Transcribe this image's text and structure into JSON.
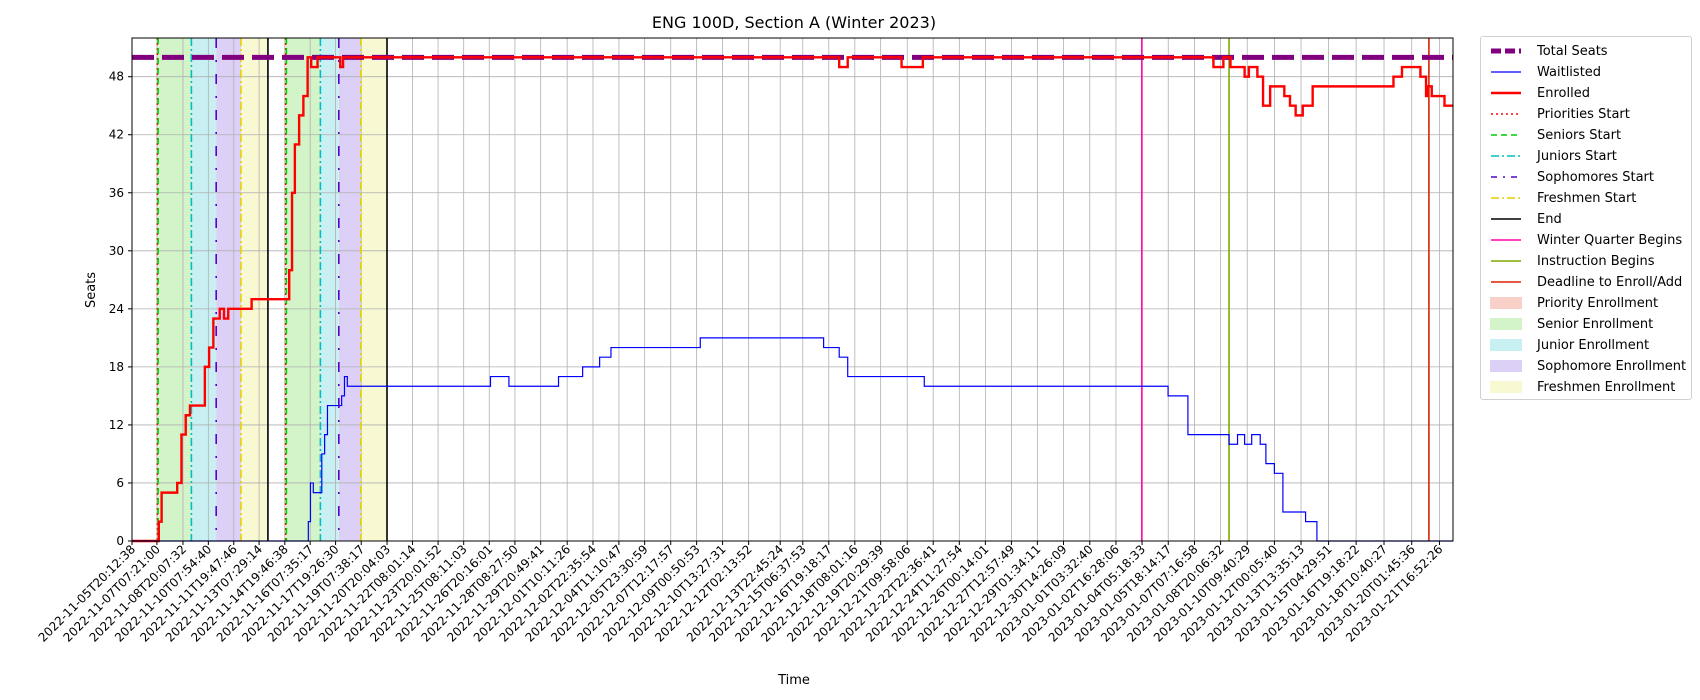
{
  "chart_data": {
    "type": "line",
    "title": "ENG 100D, Section A (Winter 2023)",
    "xlabel": "Time",
    "ylabel": "Seats",
    "ylim": [
      0,
      52
    ],
    "yticks": [
      0,
      6,
      12,
      18,
      24,
      30,
      36,
      42,
      48
    ],
    "grid": true,
    "legend_placement": "outside-right",
    "x_tick_labels": [
      "2022-11-05T20:12:38",
      "2022-11-07T07:21:00",
      "2022-11-08T20:07:32",
      "2022-11-10T07:54:40",
      "2022-11-11T19:47:46",
      "2022-11-13T07:29:14",
      "2022-11-14T19:46:38",
      "2022-11-16T07:35:17",
      "2022-11-17T19:26:30",
      "2022-11-19T07:38:17",
      "2022-11-20T20:04:03",
      "2022-11-22T08:01:14",
      "2022-11-23T20:01:52",
      "2022-11-25T08:11:03",
      "2022-11-26T20:16:01",
      "2022-11-28T08:27:50",
      "2022-11-29T20:49:41",
      "2022-12-01T10:11:26",
      "2022-12-02T22:35:54",
      "2022-12-04T11:10:47",
      "2022-12-05T23:30:59",
      "2022-12-07T12:17:57",
      "2022-12-09T00:50:53",
      "2022-12-10T13:27:31",
      "2022-12-12T02:13:52",
      "2022-12-13T22:45:24",
      "2022-12-15T06:37:53",
      "2022-12-16T19:18:17",
      "2022-12-18T08:01:16",
      "2022-12-19T20:29:39",
      "2022-12-21T09:58:06",
      "2022-12-22T22:36:41",
      "2022-12-24T11:27:54",
      "2022-12-26T00:14:01",
      "2022-12-27T12:57:49",
      "2022-12-29T01:34:11",
      "2022-12-30T14:26:09",
      "2023-01-01T03:32:40",
      "2023-01-02T16:28:06",
      "2023-01-04T05:18:33",
      "2023-01-05T18:14:17",
      "2023-01-07T07:16:58",
      "2023-01-08T20:06:32",
      "2023-01-10T09:40:29",
      "2023-01-12T00:05:40",
      "2023-01-13T13:35:13",
      "2023-01-15T04:29:51",
      "2023-01-16T19:18:22",
      "2023-01-18T10:40:27",
      "2023-01-20T01:45:36",
      "2023-01-21T16:52:26"
    ],
    "x_range": [
      "2022-11-05T20:12:38",
      "2023-01-22T12:00:00"
    ],
    "series": [
      {
        "name": "Total Seats",
        "color": "#800080",
        "style": "dashed-thick",
        "points": [
          [
            "2022-11-05T20:12:38",
            50
          ],
          [
            "2023-01-22T12:00:00",
            50
          ]
        ]
      },
      {
        "name": "Enrolled",
        "color": "#ff0000",
        "style": "solid-thick",
        "points": [
          [
            "2022-11-05T20:12:38",
            0
          ],
          [
            "2022-11-07T07:21:00",
            0
          ],
          [
            "2022-11-07T10:00:00",
            2
          ],
          [
            "2022-11-07T14:00:00",
            5
          ],
          [
            "2022-11-08T00:00:00",
            5
          ],
          [
            "2022-11-08T12:00:00",
            6
          ],
          [
            "2022-11-08T18:00:00",
            11
          ],
          [
            "2022-11-09T00:00:00",
            13
          ],
          [
            "2022-11-09T06:00:00",
            14
          ],
          [
            "2022-11-09T20:00:00",
            14
          ],
          [
            "2022-11-10T03:00:00",
            18
          ],
          [
            "2022-11-10T09:00:00",
            20
          ],
          [
            "2022-11-10T15:00:00",
            23
          ],
          [
            "2022-11-11T00:00:00",
            24
          ],
          [
            "2022-11-11T06:00:00",
            23
          ],
          [
            "2022-11-11T12:00:00",
            24
          ],
          [
            "2022-11-12T12:00:00",
            24
          ],
          [
            "2022-11-12T21:00:00",
            25
          ],
          [
            "2022-11-14T19:46:38",
            25
          ],
          [
            "2022-11-15T02:00:00",
            28
          ],
          [
            "2022-11-15T06:00:00",
            36
          ],
          [
            "2022-11-15T10:00:00",
            41
          ],
          [
            "2022-11-15T16:00:00",
            44
          ],
          [
            "2022-11-15T22:00:00",
            46
          ],
          [
            "2022-11-16T04:00:00",
            50
          ],
          [
            "2022-11-16T09:00:00",
            49
          ],
          [
            "2022-11-16T18:00:00",
            50
          ],
          [
            "2022-11-17T19:26:30",
            50
          ],
          [
            "2022-11-18T02:00:00",
            49
          ],
          [
            "2022-11-18T06:00:00",
            50
          ],
          [
            "2022-12-17T08:00:00",
            50
          ],
          [
            "2022-12-17T10:00:00",
            49
          ],
          [
            "2022-12-17T22:00:00",
            50
          ],
          [
            "2022-12-21T00:00:00",
            50
          ],
          [
            "2022-12-21T02:00:00",
            49
          ],
          [
            "2022-12-22T08:00:00",
            50
          ],
          [
            "2023-01-08T06:00:00",
            50
          ],
          [
            "2023-01-08T10:00:00",
            49
          ],
          [
            "2023-01-09T00:00:00",
            50
          ],
          [
            "2023-01-09T08:00:00",
            50
          ],
          [
            "2023-01-09T10:00:00",
            49
          ],
          [
            "2023-01-10T06:00:00",
            48
          ],
          [
            "2023-01-10T12:00:00",
            49
          ],
          [
            "2023-01-11T00:00:00",
            48
          ],
          [
            "2023-01-11T08:00:00",
            45
          ],
          [
            "2023-01-11T18:00:00",
            47
          ],
          [
            "2023-01-12T14:00:00",
            46
          ],
          [
            "2023-01-12T22:00:00",
            45
          ],
          [
            "2023-01-13T06:00:00",
            44
          ],
          [
            "2023-01-13T16:00:00",
            45
          ],
          [
            "2023-01-14T06:00:00",
            47
          ],
          [
            "2023-01-18T20:00:00",
            47
          ],
          [
            "2023-01-19T00:00:00",
            48
          ],
          [
            "2023-01-19T12:00:00",
            49
          ],
          [
            "2023-01-20T06:00:00",
            49
          ],
          [
            "2023-01-20T14:00:00",
            48
          ],
          [
            "2023-01-20T22:00:00",
            46
          ],
          [
            "2023-01-21T00:00:00",
            47
          ],
          [
            "2023-01-21T06:00:00",
            46
          ],
          [
            "2023-01-22T00:00:00",
            45
          ],
          [
            "2023-01-22T12:00:00",
            45
          ]
        ]
      },
      {
        "name": "Waitlisted",
        "color": "#0000ff",
        "style": "solid-thin",
        "points": [
          [
            "2022-11-05T20:12:38",
            0
          ],
          [
            "2022-11-16T02:00:00",
            0
          ],
          [
            "2022-11-16T05:00:00",
            2
          ],
          [
            "2022-11-16T08:00:00",
            6
          ],
          [
            "2022-11-16T12:00:00",
            5
          ],
          [
            "2022-11-16T20:00:00",
            5
          ],
          [
            "2022-11-17T00:00:00",
            9
          ],
          [
            "2022-11-17T04:00:00",
            11
          ],
          [
            "2022-11-17T08:00:00",
            14
          ],
          [
            "2022-11-18T00:00:00",
            14
          ],
          [
            "2022-11-18T04:00:00",
            15
          ],
          [
            "2022-11-18T08:00:00",
            17
          ],
          [
            "2022-11-18T12:00:00",
            16
          ],
          [
            "2022-11-26T20:00:00",
            16
          ],
          [
            "2022-11-26T22:00:00",
            17
          ],
          [
            "2022-11-28T00:00:00",
            16
          ],
          [
            "2022-11-30T22:00:00",
            17
          ],
          [
            "2022-12-02T08:00:00",
            18
          ],
          [
            "2022-12-03T08:00:00",
            19
          ],
          [
            "2022-12-04T00:00:00",
            20
          ],
          [
            "2022-12-09T04:00:00",
            20
          ],
          [
            "2022-12-09T06:00:00",
            21
          ],
          [
            "2022-12-16T08:00:00",
            21
          ],
          [
            "2022-12-16T12:00:00",
            20
          ],
          [
            "2022-12-17T10:00:00",
            19
          ],
          [
            "2022-12-17T22:00:00",
            17
          ],
          [
            "2022-12-22T08:00:00",
            17
          ],
          [
            "2022-12-22T10:00:00",
            16
          ],
          [
            "2023-01-05T12:00:00",
            16
          ],
          [
            "2023-01-05T18:00:00",
            15
          ],
          [
            "2023-01-06T18:00:00",
            15
          ],
          [
            "2023-01-06T22:00:00",
            11
          ],
          [
            "2023-01-09T04:00:00",
            11
          ],
          [
            "2023-01-09T08:00:00",
            10
          ],
          [
            "2023-01-09T20:00:00",
            11
          ],
          [
            "2023-01-10T06:00:00",
            10
          ],
          [
            "2023-01-10T16:00:00",
            11
          ],
          [
            "2023-01-11T04:00:00",
            10
          ],
          [
            "2023-01-11T12:00:00",
            8
          ],
          [
            "2023-01-12T00:00:00",
            7
          ],
          [
            "2023-01-12T12:00:00",
            3
          ],
          [
            "2023-01-13T12:00:00",
            3
          ],
          [
            "2023-01-13T20:00:00",
            2
          ],
          [
            "2023-01-14T12:00:00",
            0
          ],
          [
            "2023-01-22T12:00:00",
            0
          ]
        ]
      }
    ],
    "vertical_markers": [
      {
        "name": "Priorities Start",
        "color": "#ff0000",
        "style": "dotted",
        "times": [
          "2022-11-07T08:00:00",
          "2022-11-14T21:00:00"
        ]
      },
      {
        "name": "Seniors Start",
        "color": "#00cc00",
        "style": "dashed",
        "times": [
          "2022-11-07T09:00:00",
          "2022-11-14T22:00:00"
        ]
      },
      {
        "name": "Juniors Start",
        "color": "#00bfbf",
        "style": "dashdot",
        "times": [
          "2022-11-09T08:00:00",
          "2022-11-16T22:00:00"
        ]
      },
      {
        "name": "Sophomores Start",
        "color": "#5500cc",
        "style": "loosely-dashdot",
        "times": [
          "2022-11-10T19:00:00",
          "2022-11-18T00:00:00"
        ]
      },
      {
        "name": "Freshmen Start",
        "color": "#e6d000",
        "style": "dashdot",
        "times": [
          "2022-11-12T06:00:00",
          "2022-11-19T07:00:00"
        ]
      },
      {
        "name": "End",
        "color": "#000000",
        "style": "solid",
        "times": [
          "2022-11-13T20:00:00",
          "2022-11-20T20:00:00"
        ]
      },
      {
        "name": "Winter Quarter Begins",
        "color": "#ff00aa",
        "style": "solid",
        "times": [
          "2023-01-04T05:00:00"
        ]
      },
      {
        "name": "Instruction Begins",
        "color": "#80aa00",
        "style": "solid",
        "times": [
          "2023-01-09T08:00:00"
        ]
      },
      {
        "name": "Deadline to Enroll/Add",
        "color": "#dd2200",
        "style": "solid",
        "times": [
          "2023-01-21T02:00:00"
        ]
      }
    ],
    "spans": [
      {
        "name": "Priority Enrollment",
        "color": "#f8d0c8",
        "ranges": [
          [
            "2022-11-07T08:00:00",
            "2022-11-07T09:00:00"
          ],
          [
            "2022-11-14T21:00:00",
            "2022-11-14T22:00:00"
          ]
        ]
      },
      {
        "name": "Senior Enrollment",
        "color": "#d2f4c8",
        "ranges": [
          [
            "2022-11-07T09:00:00",
            "2022-11-09T08:00:00"
          ],
          [
            "2022-11-14T22:00:00",
            "2022-11-16T22:00:00"
          ]
        ]
      },
      {
        "name": "Junior Enrollment",
        "color": "#c8f0f2",
        "ranges": [
          [
            "2022-11-09T08:00:00",
            "2022-11-10T19:00:00"
          ],
          [
            "2022-11-16T22:00:00",
            "2022-11-18T00:00:00"
          ]
        ]
      },
      {
        "name": "Sophomore Enrollment",
        "color": "#dcd0f6",
        "ranges": [
          [
            "2022-11-10T19:00:00",
            "2022-11-12T06:00:00"
          ],
          [
            "2022-11-18T00:00:00",
            "2022-11-19T07:00:00"
          ]
        ]
      },
      {
        "name": "Freshmen Enrollment",
        "color": "#f8f8d2",
        "ranges": [
          [
            "2022-11-12T06:00:00",
            "2022-11-13T20:00:00"
          ],
          [
            "2022-11-19T07:00:00",
            "2022-11-20T20:00:00"
          ]
        ]
      }
    ],
    "legend": [
      {
        "label": "Total Seats",
        "kind": "line",
        "color": "#800080",
        "style": "dashed-thick"
      },
      {
        "label": "Waitlisted",
        "kind": "line",
        "color": "#0000ff",
        "style": "solid-thin"
      },
      {
        "label": "Enrolled",
        "kind": "line",
        "color": "#ff0000",
        "style": "solid-thick"
      },
      {
        "label": "Priorities Start",
        "kind": "line",
        "color": "#ff0000",
        "style": "dotted"
      },
      {
        "label": "Seniors Start",
        "kind": "line",
        "color": "#00cc00",
        "style": "dashed"
      },
      {
        "label": "Juniors Start",
        "kind": "line",
        "color": "#00bfbf",
        "style": "dashdot"
      },
      {
        "label": "Sophomores Start",
        "kind": "line",
        "color": "#5500cc",
        "style": "loosely-dashdot"
      },
      {
        "label": "Freshmen Start",
        "kind": "line",
        "color": "#e6d000",
        "style": "dashdot"
      },
      {
        "label": "End",
        "kind": "line",
        "color": "#000000",
        "style": "solid"
      },
      {
        "label": "Winter Quarter Begins",
        "kind": "line",
        "color": "#ff00aa",
        "style": "solid"
      },
      {
        "label": "Instruction Begins",
        "kind": "line",
        "color": "#80aa00",
        "style": "solid"
      },
      {
        "label": "Deadline to Enroll/Add",
        "kind": "line",
        "color": "#dd2200",
        "style": "solid"
      },
      {
        "label": "Priority Enrollment",
        "kind": "patch",
        "color": "#f8d0c8"
      },
      {
        "label": "Senior Enrollment",
        "kind": "patch",
        "color": "#d2f4c8"
      },
      {
        "label": "Junior Enrollment",
        "kind": "patch",
        "color": "#c8f0f2"
      },
      {
        "label": "Sophomore Enrollment",
        "kind": "patch",
        "color": "#dcd0f6"
      },
      {
        "label": "Freshmen Enrollment",
        "kind": "patch",
        "color": "#f8f8d2"
      }
    ]
  }
}
